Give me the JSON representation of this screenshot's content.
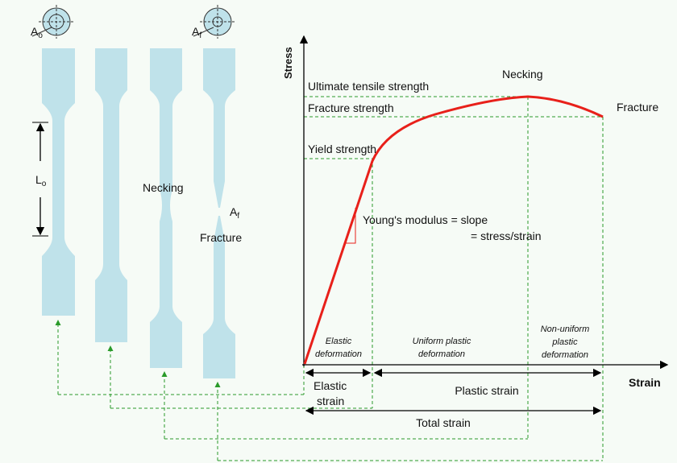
{
  "specimens": {
    "initial_area": {
      "symbol": "A",
      "subscript": "o"
    },
    "final_area": {
      "symbol": "A",
      "subscript": "f"
    },
    "gauge_length": {
      "symbol": "L",
      "subscript": "o"
    },
    "necking": "Necking",
    "fracture_area": {
      "symbol": "A",
      "subscript": "f"
    },
    "fracture": "Fracture"
  },
  "graph": {
    "y_axis": "Stress",
    "x_axis": "Strain",
    "ultimate_tensile_strength": "Ultimate tensile strength",
    "fracture_strength": "Fracture strength",
    "yield_strength": "Yield strength",
    "necking": "Necking",
    "fracture": "Fracture",
    "modulus": [
      "Young's modulus = slope",
      "= stress/strain"
    ],
    "regions": [
      [
        "Elastic",
        "deformation"
      ],
      [
        "Uniform plastic",
        "deformation"
      ],
      [
        "Non-uniform",
        "plastic",
        "deformation"
      ]
    ],
    "elastic_strain": [
      "Elastic",
      "strain"
    ],
    "plastic_strain": "Plastic strain",
    "total_strain": "Total strain"
  }
}
